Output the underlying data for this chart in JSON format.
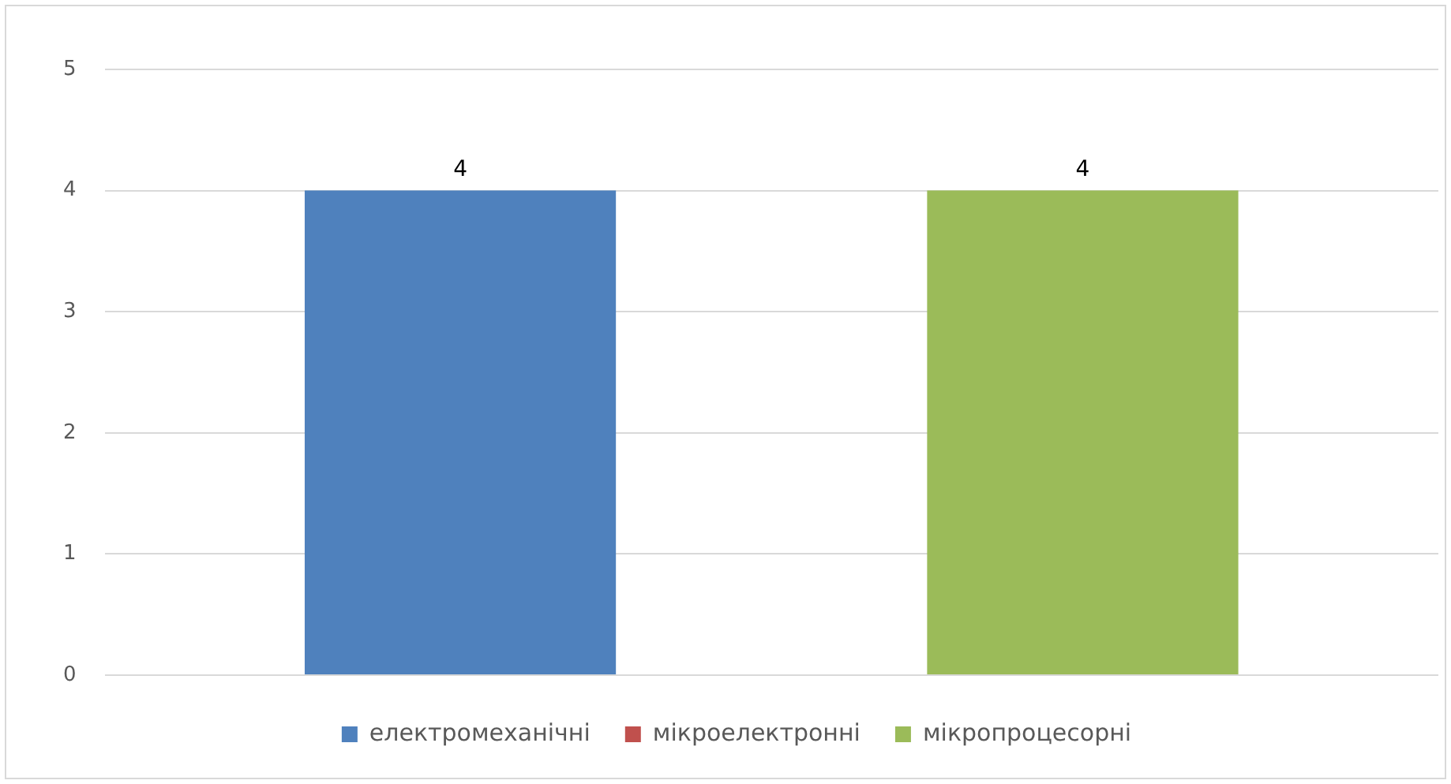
{
  "chart_data": {
    "type": "bar",
    "categories": [
      null
    ],
    "series": [
      {
        "name": "електромеханічні",
        "color": "#4f81bd",
        "values": [
          4
        ]
      },
      {
        "name": "мікроелектронні",
        "color": "#c0504d",
        "values": [
          null
        ]
      },
      {
        "name": "мікропроцесорні",
        "color": "#9bbb59",
        "values": [
          4
        ]
      }
    ],
    "ylim": [
      0,
      5
    ],
    "yticks": [
      0,
      1,
      2,
      3,
      4,
      5
    ],
    "grid": "y",
    "legend": "bottom",
    "data_labels": true
  }
}
